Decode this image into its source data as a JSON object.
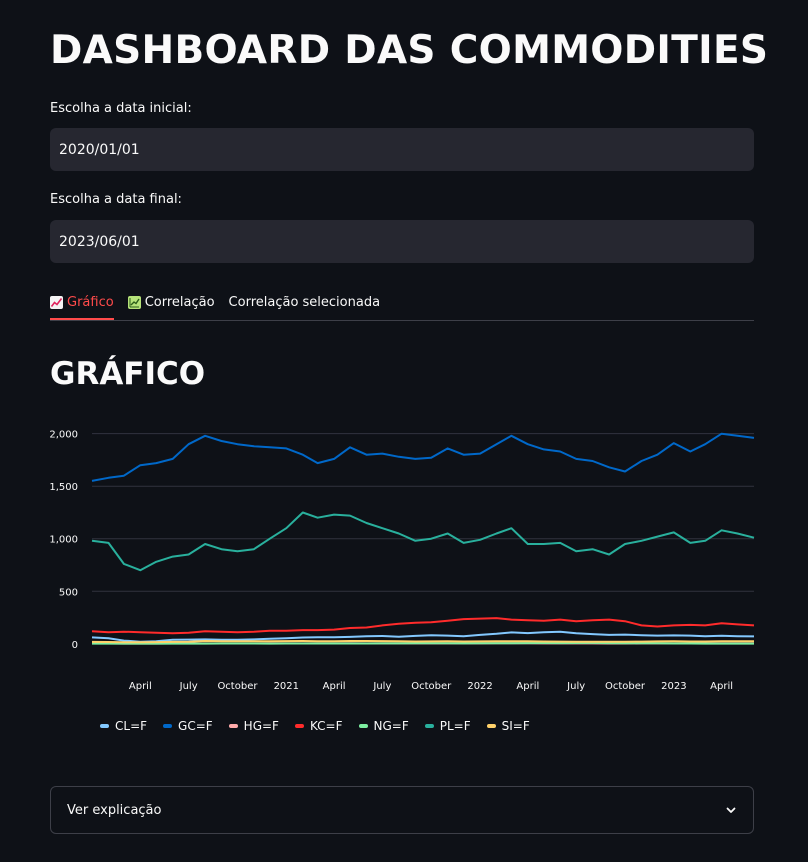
{
  "page": {
    "title": "DASHBOARD DAS COMMODITIES"
  },
  "start_date": {
    "label": "Escolha a data inicial:",
    "value": "2020/01/01"
  },
  "end_date": {
    "label": "Escolha a data final:",
    "value": "2023/06/01"
  },
  "tabs": [
    {
      "label": "Gráfico",
      "icon": "chart-increasing-icon",
      "active": true
    },
    {
      "label": "Correlação",
      "icon": "chart-with-upwards-trend-icon",
      "active": false
    },
    {
      "label": "Correlação selecionada",
      "icon": "",
      "active": false
    }
  ],
  "section": {
    "title": "GRÁFICO"
  },
  "chart_data": {
    "type": "line",
    "y_ticks": [
      0,
      500,
      1000,
      1500,
      2000
    ],
    "y_tick_labels": [
      "0",
      "500",
      "1,000",
      "1,500",
      "2,000"
    ],
    "x_ticks": [
      {
        "date": "2020-04-01",
        "label": "April"
      },
      {
        "date": "2020-07-01",
        "label": "July"
      },
      {
        "date": "2020-10-01",
        "label": "October"
      },
      {
        "date": "2021-01-01",
        "label": "2021"
      },
      {
        "date": "2021-04-01",
        "label": "April"
      },
      {
        "date": "2021-07-01",
        "label": "July"
      },
      {
        "date": "2021-10-01",
        "label": "October"
      },
      {
        "date": "2022-01-01",
        "label": "2022"
      },
      {
        "date": "2022-04-01",
        "label": "April"
      },
      {
        "date": "2022-07-01",
        "label": "July"
      },
      {
        "date": "2022-10-01",
        "label": "October"
      },
      {
        "date": "2023-01-01",
        "label": "2023"
      },
      {
        "date": "2023-04-01",
        "label": "April"
      }
    ],
    "x_range": [
      "2020-01-01",
      "2023-06-01"
    ],
    "ylim": [
      -40,
      2130
    ],
    "grid": true,
    "legend_position": "bottom",
    "dates": [
      "2020-01-01",
      "2020-02-01",
      "2020-03-01",
      "2020-04-01",
      "2020-05-01",
      "2020-06-01",
      "2020-07-01",
      "2020-08-01",
      "2020-09-01",
      "2020-10-01",
      "2020-11-01",
      "2020-12-01",
      "2021-01-01",
      "2021-02-01",
      "2021-03-01",
      "2021-04-01",
      "2021-05-01",
      "2021-06-01",
      "2021-07-01",
      "2021-08-01",
      "2021-09-01",
      "2021-10-01",
      "2021-11-01",
      "2021-12-01",
      "2022-01-01",
      "2022-02-01",
      "2022-03-01",
      "2022-04-01",
      "2022-05-01",
      "2022-06-01",
      "2022-07-01",
      "2022-08-01",
      "2022-09-01",
      "2022-10-01",
      "2022-11-01",
      "2022-12-01",
      "2023-01-01",
      "2023-02-01",
      "2023-03-01",
      "2023-04-01",
      "2023-05-01",
      "2023-06-01"
    ],
    "series": [
      {
        "name": "CL=F",
        "color": "#83c9ff",
        "values": [
          61,
          52,
          30,
          20,
          25,
          38,
          40,
          42,
          39,
          38,
          42,
          48,
          52,
          60,
          62,
          62,
          66,
          72,
          74,
          68,
          75,
          82,
          78,
          72,
          85,
          95,
          108,
          102,
          110,
          115,
          100,
          92,
          85,
          88,
          82,
          78,
          80,
          78,
          72,
          76,
          72,
          70
        ]
      },
      {
        "name": "GC=F",
        "color": "#0068c9",
        "values": [
          1550,
          1580,
          1600,
          1700,
          1720,
          1760,
          1900,
          1980,
          1930,
          1900,
          1880,
          1870,
          1860,
          1800,
          1720,
          1760,
          1870,
          1800,
          1810,
          1780,
          1760,
          1770,
          1860,
          1800,
          1810,
          1900,
          1980,
          1900,
          1850,
          1830,
          1760,
          1740,
          1680,
          1640,
          1740,
          1800,
          1910,
          1830,
          1900,
          2000,
          1980,
          1960
        ]
      },
      {
        "name": "HG=F",
        "color": "#ffabab",
        "values": [
          3,
          3,
          2,
          2,
          2,
          3,
          3,
          3,
          3,
          3,
          3,
          4,
          4,
          4,
          4,
          4,
          5,
          4,
          4,
          4,
          4,
          4,
          4,
          4,
          4,
          5,
          5,
          5,
          4,
          4,
          4,
          4,
          3,
          3,
          4,
          4,
          4,
          4,
          4,
          4,
          4,
          4
        ]
      },
      {
        "name": "KC=F",
        "color": "#ff2b2b",
        "values": [
          120,
          110,
          115,
          110,
          105,
          100,
          105,
          120,
          115,
          110,
          115,
          125,
          125,
          130,
          130,
          135,
          150,
          155,
          175,
          190,
          200,
          205,
          220,
          235,
          240,
          245,
          230,
          225,
          220,
          230,
          215,
          225,
          230,
          215,
          175,
          165,
          175,
          180,
          175,
          195,
          185,
          175
        ]
      },
      {
        "name": "NG=F",
        "color": "#7defa1",
        "values": [
          2,
          2,
          2,
          2,
          2,
          2,
          2,
          2,
          3,
          3,
          3,
          2,
          3,
          3,
          3,
          3,
          3,
          3,
          4,
          4,
          5,
          5,
          5,
          4,
          5,
          5,
          5,
          7,
          8,
          7,
          8,
          9,
          7,
          6,
          6,
          5,
          3,
          3,
          2,
          2,
          2,
          2
        ]
      },
      {
        "name": "PL=F",
        "color": "#29b09d",
        "values": [
          980,
          960,
          760,
          700,
          780,
          830,
          850,
          950,
          900,
          880,
          900,
          1000,
          1100,
          1250,
          1200,
          1230,
          1220,
          1150,
          1100,
          1050,
          980,
          1000,
          1050,
          960,
          990,
          1050,
          1100,
          950,
          950,
          960,
          880,
          900,
          850,
          950,
          980,
          1020,
          1060,
          960,
          980,
          1080,
          1050,
          1010
        ]
      },
      {
        "name": "SI=F",
        "color": "#ffd16a",
        "values": [
          18,
          17,
          14,
          15,
          16,
          18,
          20,
          27,
          25,
          24,
          24,
          25,
          26,
          27,
          25,
          25,
          27,
          27,
          26,
          24,
          22,
          23,
          24,
          22,
          23,
          24,
          25,
          24,
          22,
          21,
          19,
          19,
          20,
          20,
          21,
          23,
          24,
          22,
          22,
          25,
          24,
          24
        ]
      }
    ]
  },
  "expander": {
    "label": "Ver explicação",
    "icon": "chevron-down-icon"
  },
  "colors": {
    "background": "#0e1117",
    "input_bg": "#262730",
    "accent": "#ff4b4b"
  }
}
